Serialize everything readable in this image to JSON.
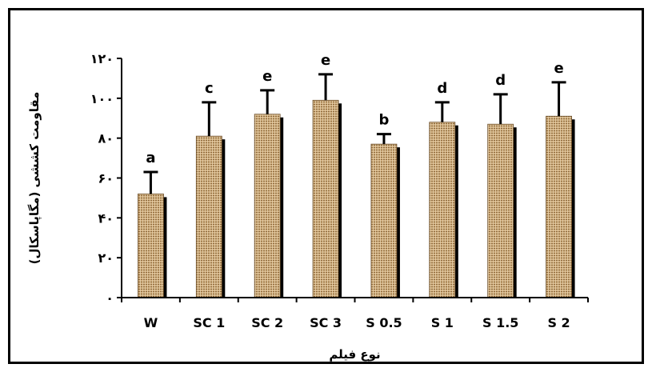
{
  "chart_data": {
    "type": "bar",
    "categories": [
      "W",
      "SC 1",
      "SC 2",
      "SC 3",
      "S 0.5",
      "S 1",
      "S 1.5",
      "S 2"
    ],
    "values": [
      52,
      81,
      92,
      99,
      77,
      88,
      87,
      91
    ],
    "errors": [
      11,
      17,
      12,
      13,
      5,
      10,
      15,
      17
    ],
    "labels": [
      "a",
      "c",
      "e",
      "e",
      "b",
      "d",
      "d",
      "e"
    ],
    "xlabel": "نوع فیلم",
    "ylabel": "مقاومت کششی (مگاپاسکال)",
    "ylim": [
      0,
      120
    ],
    "yticks": [
      0,
      20,
      40,
      60,
      80,
      100,
      120
    ],
    "ytick_labels": [
      "۰",
      "۲۰",
      "۴۰",
      "۶۰",
      "۸۰",
      "۱۰۰",
      "۱۲۰"
    ],
    "colors": {
      "bar": "#c9a877",
      "bar_pattern": "#8f6a3a",
      "shadow": "#000000"
    },
    "grid": false,
    "legend": "none"
  }
}
